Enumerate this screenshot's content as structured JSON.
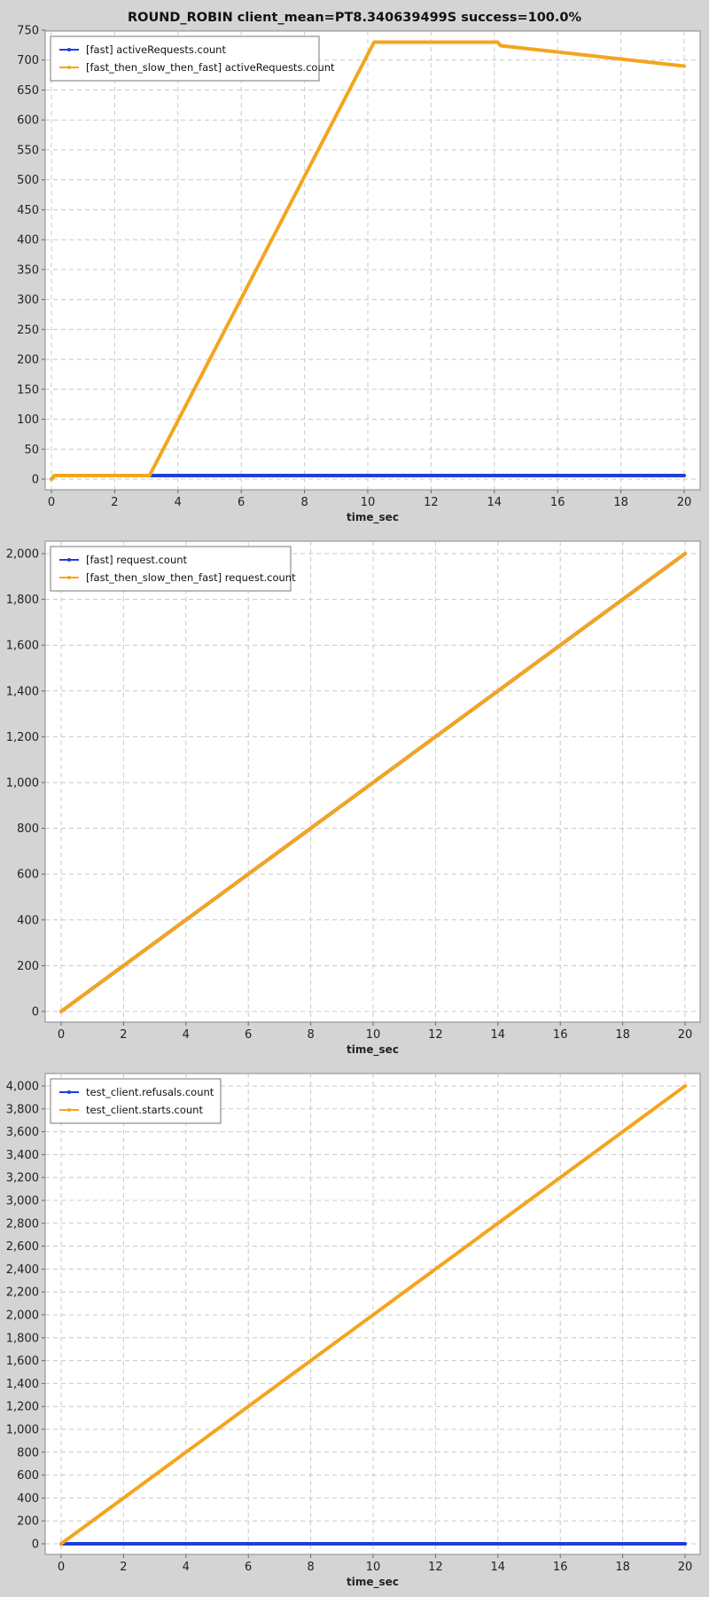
{
  "page": {
    "title": "ROUND_ROBIN client_mean=PT8.340639499S success=100.0%"
  },
  "chart_data": [
    {
      "type": "line",
      "title": "",
      "xlabel": "time_sec",
      "ylabel": "",
      "xlim": [
        0,
        20
      ],
      "ylim": [
        0,
        750
      ],
      "xticks": [
        0,
        2,
        4,
        6,
        8,
        10,
        12,
        14,
        16,
        18,
        20
      ],
      "yticks": [
        0,
        50,
        100,
        150,
        200,
        250,
        300,
        350,
        400,
        450,
        500,
        550,
        600,
        650,
        700,
        750
      ],
      "xtick_labels": [
        "0",
        "2",
        "4",
        "6",
        "8",
        "10",
        "12",
        "14",
        "16",
        "18",
        "20"
      ],
      "ytick_labels": [
        "0",
        "50",
        "100",
        "150",
        "200",
        "250",
        "300",
        "350",
        "400",
        "450",
        "500",
        "550",
        "600",
        "650",
        "700",
        "750"
      ],
      "grid": true,
      "legend": "top-left",
      "series": [
        {
          "name": "[fast] activeRequests.count",
          "color": "#1f3fd6",
          "x": [
            0,
            0.1,
            20
          ],
          "y": [
            0,
            6,
            6
          ]
        },
        {
          "name": "[fast_then_slow_then_fast] activeRequests.count",
          "color": "#f4a51d",
          "x": [
            0,
            0.1,
            3.1,
            10.2,
            14.1,
            14.2,
            20
          ],
          "y": [
            0,
            6,
            6,
            730,
            730,
            724,
            690
          ]
        }
      ]
    },
    {
      "type": "line",
      "title": "",
      "xlabel": "time_sec",
      "ylabel": "",
      "xlim": [
        0,
        20
      ],
      "ylim": [
        0,
        2000
      ],
      "xticks": [
        0,
        2,
        4,
        6,
        8,
        10,
        12,
        14,
        16,
        18,
        20
      ],
      "yticks": [
        0,
        200,
        400,
        600,
        800,
        1000,
        1200,
        1400,
        1600,
        1800,
        2000
      ],
      "xtick_labels": [
        "0",
        "2",
        "4",
        "6",
        "8",
        "10",
        "12",
        "14",
        "16",
        "18",
        "20"
      ],
      "ytick_labels": [
        "0",
        "200",
        "400",
        "600",
        "800",
        "1,000",
        "1,200",
        "1,400",
        "1,600",
        "1,800",
        "2,000"
      ],
      "grid": true,
      "legend": "top-left",
      "series": [
        {
          "name": "[fast] request.count",
          "color": "#1f3fd6",
          "x": [
            0,
            20
          ],
          "y": [
            0,
            2000
          ]
        },
        {
          "name": "[fast_then_slow_then_fast] request.count",
          "color": "#f4a51d",
          "x": [
            0,
            20
          ],
          "y": [
            0,
            2000
          ]
        }
      ]
    },
    {
      "type": "line",
      "title": "",
      "xlabel": "time_sec",
      "ylabel": "",
      "xlim": [
        0,
        20
      ],
      "ylim": [
        0,
        4000
      ],
      "xticks": [
        0,
        2,
        4,
        6,
        8,
        10,
        12,
        14,
        16,
        18,
        20
      ],
      "yticks": [
        0,
        200,
        400,
        600,
        800,
        1000,
        1200,
        1400,
        1600,
        1800,
        2000,
        2200,
        2400,
        2600,
        2800,
        3000,
        3200,
        3400,
        3600,
        3800,
        4000
      ],
      "xtick_labels": [
        "0",
        "2",
        "4",
        "6",
        "8",
        "10",
        "12",
        "14",
        "16",
        "18",
        "20"
      ],
      "ytick_labels": [
        "0",
        "200",
        "400",
        "600",
        "800",
        "1,000",
        "1,200",
        "1,400",
        "1,600",
        "1,800",
        "2,000",
        "2,200",
        "2,400",
        "2,600",
        "2,800",
        "3,000",
        "3,200",
        "3,400",
        "3,600",
        "3,800",
        "4,000"
      ],
      "grid": true,
      "legend": "top-left",
      "series": [
        {
          "name": "test_client.refusals.count",
          "color": "#1f3fd6",
          "x": [
            0,
            20
          ],
          "y": [
            0,
            0
          ]
        },
        {
          "name": "test_client.starts.count",
          "color": "#f4a51d",
          "x": [
            0,
            20
          ],
          "y": [
            0,
            4000
          ]
        }
      ]
    }
  ]
}
